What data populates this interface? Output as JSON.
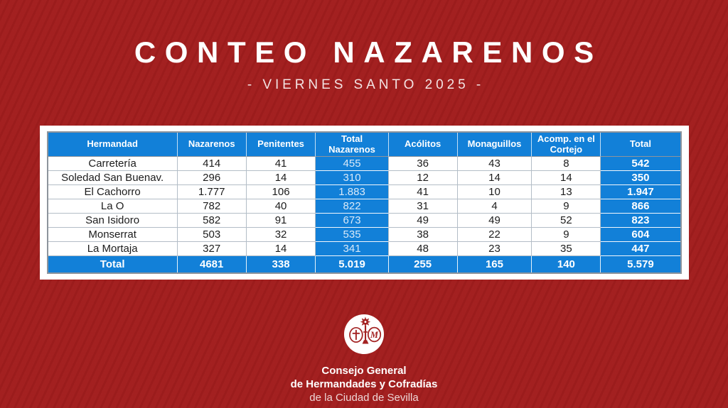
{
  "title": "CONTEO NAZARENOS",
  "subtitle": "- VIERNES SANTO 2025 -",
  "chart_data": {
    "type": "table",
    "columns": [
      "Hermandad",
      "Nazarenos",
      "Penitentes",
      "Total Nazarenos",
      "Acólitos",
      "Monaguillos",
      "Acomp. en el Cortejo",
      "Total"
    ],
    "rows": [
      [
        "Carretería",
        "414",
        "41",
        "455",
        "36",
        "43",
        "8",
        "542"
      ],
      [
        "Soledad San Buenav.",
        "296",
        "14",
        "310",
        "12",
        "14",
        "14",
        "350"
      ],
      [
        "El Cachorro",
        "1.777",
        "106",
        "1.883",
        "41",
        "10",
        "13",
        "1.947"
      ],
      [
        "La O",
        "782",
        "40",
        "822",
        "31",
        "4",
        "9",
        "866"
      ],
      [
        "San Isidoro",
        "582",
        "91",
        "673",
        "49",
        "49",
        "52",
        "823"
      ],
      [
        "Monserrat",
        "503",
        "32",
        "535",
        "38",
        "22",
        "9",
        "604"
      ],
      [
        "La Mortaja",
        "327",
        "14",
        "341",
        "48",
        "23",
        "35",
        "447"
      ]
    ],
    "total_row": [
      "Total",
      "4681",
      "338",
      "5.019",
      "255",
      "165",
      "140",
      "5.579"
    ],
    "highlight_columns": [
      3,
      7
    ],
    "legend_position": "none",
    "grid": true
  },
  "footer": {
    "logo": "consejo-emblem-icon",
    "line1": "Consejo General",
    "line2": "de Hermandades y Cofradías",
    "line3": "de la Ciudad de Sevilla"
  },
  "colors": {
    "background_red": "#A21D1D",
    "table_blue": "#1280D8",
    "card_white": "#FFFFFF",
    "highlight_text_light_blue": "#D9E9F8",
    "body_text_dark": "#1C1C1C"
  }
}
